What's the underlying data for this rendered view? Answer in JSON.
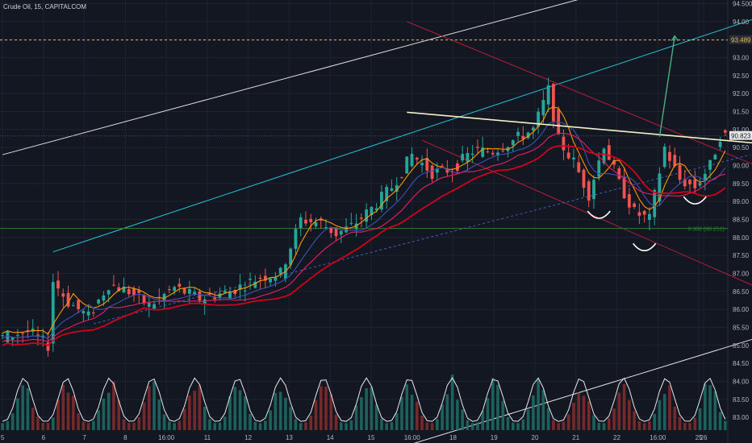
{
  "header": {
    "title": "Crude Oil, 15, CAPITALCOM"
  },
  "colors": {
    "background": "#131722",
    "grid": "#1f2330",
    "candle_up": "#26a69a",
    "candle_down": "#ef5350",
    "ema_fast": "#ff9800",
    "ema_mid": "#3f51b5",
    "ema_slow": "#e91e63",
    "sma_long": "#d0021b",
    "neckline": "#f5f1c8",
    "channel_cyan": "#26c6da",
    "channel_white": "#e0e0e0",
    "channel_red": "#b71c3c",
    "target_line": "#e6b84f",
    "fib_line": "#2e7d32",
    "projection_arrow": "#4caf80",
    "volume_avg": "#e8e8e8"
  },
  "chart_data": {
    "type": "candlestick",
    "title": "Crude Oil, 15, CAPITALCOM",
    "symbol": "Crude Oil",
    "interval": "15",
    "source": "CAPITALCOM",
    "x_tick_labels": [
      "5",
      "6",
      "7",
      "8",
      "16:00",
      "11",
      "12",
      "13",
      "14",
      "15",
      "16:00",
      "18",
      "19",
      "20",
      "21",
      "22",
      "16:00",
      "25",
      "26"
    ],
    "y_tick_labels": [
      "83.00",
      "83.50",
      "84.00",
      "84.50",
      "85.00",
      "85.50",
      "86.00",
      "86.50",
      "87.00",
      "87.50",
      "88.00",
      "88.50",
      "89.00",
      "89.50",
      "90.00",
      "90.50",
      "91.00",
      "91.50",
      "92.00",
      "92.50",
      "93.00",
      "93.50",
      "94.00",
      "94.500"
    ],
    "ylim": [
      82.6,
      94.6
    ],
    "grid": true,
    "current_price_label": "90.823",
    "current_price": 90.823,
    "target_level_label": "93.489",
    "target_level": 93.489,
    "fib_label": "0.382 (88.251)",
    "fib_level": 88.251,
    "price_path": [
      {
        "t": 0,
        "p": 85.2
      },
      {
        "t": 6,
        "p": 85.4
      },
      {
        "t": 10,
        "p": 85.0
      },
      {
        "t": 11,
        "p": 86.8
      },
      {
        "t": 14,
        "p": 86.2
      },
      {
        "t": 18,
        "p": 85.8
      },
      {
        "t": 22,
        "p": 86.7
      },
      {
        "t": 26,
        "p": 86.5
      },
      {
        "t": 30,
        "p": 86.1
      },
      {
        "t": 35,
        "p": 86.6
      },
      {
        "t": 40,
        "p": 86.3
      },
      {
        "t": 46,
        "p": 86.5
      },
      {
        "t": 52,
        "p": 86.9
      },
      {
        "t": 56,
        "p": 87.0
      },
      {
        "t": 60,
        "p": 88.5
      },
      {
        "t": 64,
        "p": 88.4
      },
      {
        "t": 67,
        "p": 88.1
      },
      {
        "t": 70,
        "p": 88.3
      },
      {
        "t": 74,
        "p": 88.8
      },
      {
        "t": 78,
        "p": 89.4
      },
      {
        "t": 82,
        "p": 90.3
      },
      {
        "t": 86,
        "p": 89.8
      },
      {
        "t": 90,
        "p": 89.9
      },
      {
        "t": 94,
        "p": 90.4
      },
      {
        "t": 98,
        "p": 90.4
      },
      {
        "t": 102,
        "p": 90.7
      },
      {
        "t": 106,
        "p": 91.0
      },
      {
        "t": 109,
        "p": 92.1
      },
      {
        "t": 111,
        "p": 90.7
      },
      {
        "t": 114,
        "p": 90.1
      },
      {
        "t": 117,
        "p": 89.2
      },
      {
        "t": 120,
        "p": 90.6
      },
      {
        "t": 123,
        "p": 89.5
      },
      {
        "t": 126,
        "p": 88.7
      },
      {
        "t": 129,
        "p": 88.5
      },
      {
        "t": 132,
        "p": 90.5
      },
      {
        "t": 135,
        "p": 89.6
      },
      {
        "t": 138,
        "p": 89.4
      },
      {
        "t": 141,
        "p": 90.0
      },
      {
        "t": 143,
        "p": 90.823
      }
    ],
    "moving_averages": [
      {
        "name": "",
        "color_key": "ema_fast",
        "offset": 0.15
      },
      {
        "name": "",
        "color_key": "ema_mid",
        "offset": -0.2
      },
      {
        "name": "",
        "color_key": "ema_slow",
        "offset": -0.45
      },
      {
        "name": "",
        "color_key": "sma_long",
        "offset": -0.7
      }
    ],
    "annotations": {
      "neckline": [
        [
          91.48,
          80
        ],
        [
          90.61,
          150
        ]
      ],
      "cyan_channel_top": [
        [
          87.6,
          10
        ],
        [
          94.6,
          160
        ]
      ],
      "white_channel_top": [
        [
          90.3,
          0
        ],
        [
          95.6,
          140
        ]
      ],
      "white_channel_bottom": [
        [
          82.0,
          75
        ],
        [
          85.5,
          156
        ]
      ],
      "red_channel_top": [
        [
          94.0,
          80
        ],
        [
          89.6,
          156
        ]
      ],
      "red_channel_bottom": [
        [
          90.7,
          83
        ],
        [
          86.2,
          156
        ]
      ],
      "blue_dashed_trend": [
        [
          85.6,
          18
        ],
        [
          90.3,
          148
        ]
      ],
      "projection_arrow": [
        [
          90.8,
          130
        ],
        [
          93.6,
          133
        ]
      ],
      "shoulder_marks": [
        [
          88.6,
          118
        ],
        [
          87.7,
          127
        ],
        [
          89.0,
          137
        ]
      ]
    },
    "volume": {
      "cycles": 17,
      "peak_ratio": 0.9
    }
  }
}
